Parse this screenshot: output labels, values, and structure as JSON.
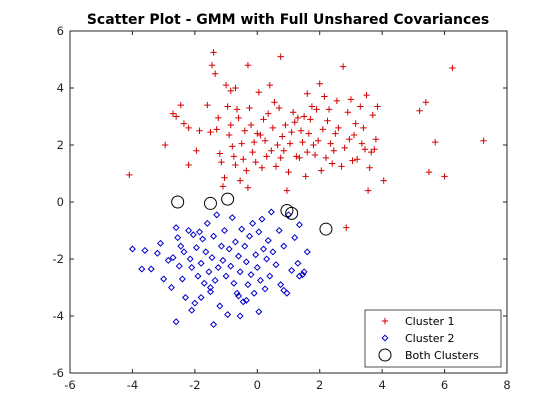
{
  "chart_data": {
    "type": "scatter",
    "title": "Scatter Plot - GMM with Full Unshared Covariances",
    "xlabel": "",
    "ylabel": "",
    "xlim": [
      -6,
      8
    ],
    "ylim": [
      -6,
      6
    ],
    "xticks": [
      -6,
      -4,
      -2,
      0,
      2,
      4,
      6,
      8
    ],
    "yticks": [
      -6,
      -4,
      -2,
      0,
      2,
      4,
      6
    ],
    "grid": false,
    "legend_position": "bottom-right",
    "series": [
      {
        "name": "Cluster 1",
        "marker": "plus",
        "color": "#d40000",
        "points": [
          [
            -4.1,
            0.95
          ],
          [
            -2.95,
            2.0
          ],
          [
            -2.7,
            3.1
          ],
          [
            -2.6,
            3.0
          ],
          [
            -2.45,
            3.4
          ],
          [
            -2.35,
            2.75
          ],
          [
            -2.2,
            1.3
          ],
          [
            -2.2,
            2.6
          ],
          [
            -1.95,
            1.8
          ],
          [
            -1.85,
            2.5
          ],
          [
            -1.6,
            3.4
          ],
          [
            -1.5,
            2.45
          ],
          [
            -1.45,
            4.8
          ],
          [
            -1.4,
            5.25
          ],
          [
            -1.35,
            4.5
          ],
          [
            -1.3,
            2.55
          ],
          [
            -1.25,
            2.95
          ],
          [
            -1.2,
            1.7
          ],
          [
            -1.15,
            1.4
          ],
          [
            -1.1,
            0.55
          ],
          [
            -1.05,
            0.85
          ],
          [
            -1.0,
            4.1
          ],
          [
            -0.95,
            3.35
          ],
          [
            -0.9,
            2.35
          ],
          [
            -0.85,
            3.9
          ],
          [
            -0.85,
            2.7
          ],
          [
            -0.8,
            1.95
          ],
          [
            -0.75,
            1.6
          ],
          [
            -0.7,
            1.3
          ],
          [
            -0.7,
            4.0
          ],
          [
            -0.65,
            3.25
          ],
          [
            -0.6,
            2.95
          ],
          [
            -0.55,
            0.75
          ],
          [
            -0.5,
            2.05
          ],
          [
            -0.45,
            1.5
          ],
          [
            -0.4,
            2.5
          ],
          [
            -0.35,
            1.1
          ],
          [
            -0.3,
            4.8
          ],
          [
            -0.3,
            0.5
          ],
          [
            -0.25,
            3.3
          ],
          [
            -0.2,
            2.7
          ],
          [
            -0.15,
            1.75
          ],
          [
            -0.1,
            2.1
          ],
          [
            -0.05,
            1.4
          ],
          [
            0.0,
            2.4
          ],
          [
            0.05,
            3.85
          ],
          [
            0.1,
            2.35
          ],
          [
            0.15,
            1.2
          ],
          [
            0.2,
            2.9
          ],
          [
            0.25,
            2.15
          ],
          [
            0.3,
            1.6
          ],
          [
            0.35,
            3.1
          ],
          [
            0.4,
            4.1
          ],
          [
            0.45,
            1.8
          ],
          [
            0.5,
            2.6
          ],
          [
            0.55,
            3.5
          ],
          [
            0.6,
            1.25
          ],
          [
            0.65,
            2.0
          ],
          [
            0.7,
            3.3
          ],
          [
            0.75,
            1.55
          ],
          [
            0.75,
            5.1
          ],
          [
            0.8,
            2.3
          ],
          [
            0.85,
            1.8
          ],
          [
            0.9,
            2.7
          ],
          [
            0.95,
            0.4
          ],
          [
            1.0,
            1.05
          ],
          [
            1.05,
            2.05
          ],
          [
            1.1,
            2.45
          ],
          [
            1.15,
            3.15
          ],
          [
            1.2,
            2.8
          ],
          [
            1.25,
            1.6
          ],
          [
            1.3,
            2.95
          ],
          [
            1.35,
            1.55
          ],
          [
            1.4,
            2.5
          ],
          [
            1.45,
            2.1
          ],
          [
            1.5,
            3.0
          ],
          [
            1.55,
            0.9
          ],
          [
            1.6,
            1.75
          ],
          [
            1.6,
            3.8
          ],
          [
            1.65,
            2.4
          ],
          [
            1.7,
            2.9
          ],
          [
            1.75,
            3.35
          ],
          [
            1.8,
            2.0
          ],
          [
            1.85,
            1.65
          ],
          [
            1.9,
            3.25
          ],
          [
            1.95,
            2.15
          ],
          [
            2.0,
            4.15
          ],
          [
            2.05,
            1.1
          ],
          [
            2.1,
            2.55
          ],
          [
            2.15,
            3.7
          ],
          [
            2.2,
            1.55
          ],
          [
            2.25,
            2.85
          ],
          [
            2.3,
            3.25
          ],
          [
            2.35,
            2.05
          ],
          [
            2.4,
            1.35
          ],
          [
            2.45,
            1.8
          ],
          [
            2.5,
            2.4
          ],
          [
            2.55,
            3.55
          ],
          [
            2.6,
            2.6
          ],
          [
            2.7,
            1.25
          ],
          [
            2.75,
            4.75
          ],
          [
            2.8,
            1.9
          ],
          [
            2.85,
            -0.9
          ],
          [
            2.9,
            3.15
          ],
          [
            2.95,
            2.2
          ],
          [
            3.0,
            3.6
          ],
          [
            3.05,
            1.45
          ],
          [
            3.1,
            2.35
          ],
          [
            3.15,
            2.75
          ],
          [
            3.2,
            1.5
          ],
          [
            3.3,
            3.35
          ],
          [
            3.35,
            2.05
          ],
          [
            3.4,
            2.6
          ],
          [
            3.45,
            1.85
          ],
          [
            3.5,
            3.75
          ],
          [
            3.55,
            0.4
          ],
          [
            3.6,
            1.2
          ],
          [
            3.65,
            1.75
          ],
          [
            3.7,
            3.05
          ],
          [
            3.75,
            1.85
          ],
          [
            3.8,
            2.2
          ],
          [
            3.85,
            3.35
          ],
          [
            4.05,
            0.75
          ],
          [
            5.2,
            3.2
          ],
          [
            5.4,
            3.5
          ],
          [
            5.5,
            1.05
          ],
          [
            5.7,
            2.1
          ],
          [
            6.0,
            0.9
          ],
          [
            6.25,
            4.7
          ],
          [
            7.25,
            2.15
          ]
        ]
      },
      {
        "name": "Cluster 2",
        "marker": "diamond",
        "color": "#0000cc",
        "points": [
          [
            -3.6,
            -1.7
          ],
          [
            -3.4,
            -2.35
          ],
          [
            -3.2,
            -1.8
          ],
          [
            -3.1,
            -1.45
          ],
          [
            -3.0,
            -2.7
          ],
          [
            -2.85,
            -2.05
          ],
          [
            -2.75,
            -3.0
          ],
          [
            -2.7,
            -1.95
          ],
          [
            -2.6,
            -0.9
          ],
          [
            -2.55,
            -1.25
          ],
          [
            -2.5,
            -2.25
          ],
          [
            -2.45,
            -1.55
          ],
          [
            -2.4,
            -2.7
          ],
          [
            -2.35,
            -1.75
          ],
          [
            -2.3,
            -3.35
          ],
          [
            -2.2,
            -1.0
          ],
          [
            -2.15,
            -2.0
          ],
          [
            -2.1,
            -2.3
          ],
          [
            -2.05,
            -1.15
          ],
          [
            -2.0,
            -3.55
          ],
          [
            -1.95,
            -1.6
          ],
          [
            -1.9,
            -2.6
          ],
          [
            -1.85,
            -1.05
          ],
          [
            -1.8,
            -2.15
          ],
          [
            -1.75,
            -1.3
          ],
          [
            -1.7,
            -2.85
          ],
          [
            -1.65,
            -1.75
          ],
          [
            -1.6,
            -0.75
          ],
          [
            -1.55,
            -2.45
          ],
          [
            -1.5,
            -3.15
          ],
          [
            -1.45,
            -1.95
          ],
          [
            -1.4,
            -1.2
          ],
          [
            -1.35,
            -2.75
          ],
          [
            -1.3,
            -0.45
          ],
          [
            -1.25,
            -2.3
          ],
          [
            -1.2,
            -3.65
          ],
          [
            -1.15,
            -1.55
          ],
          [
            -1.1,
            -2.05
          ],
          [
            -1.05,
            -1.0
          ],
          [
            -1.0,
            -2.6
          ],
          [
            -0.95,
            -3.95
          ],
          [
            -0.9,
            -1.65
          ],
          [
            -0.85,
            -2.25
          ],
          [
            -0.8,
            -0.55
          ],
          [
            -0.75,
            -2.85
          ],
          [
            -0.7,
            -1.4
          ],
          [
            -0.65,
            -3.2
          ],
          [
            -0.6,
            -1.9
          ],
          [
            -0.55,
            -2.45
          ],
          [
            -0.5,
            -0.95
          ],
          [
            -0.45,
            -3.5
          ],
          [
            -0.4,
            -1.55
          ],
          [
            -0.35,
            -2.1
          ],
          [
            -0.3,
            -2.9
          ],
          [
            -0.25,
            -1.2
          ],
          [
            -0.2,
            -2.55
          ],
          [
            -0.15,
            -0.75
          ],
          [
            -0.1,
            -3.2
          ],
          [
            -0.05,
            -1.85
          ],
          [
            0.0,
            -2.3
          ],
          [
            0.05,
            -1.05
          ],
          [
            0.1,
            -2.75
          ],
          [
            0.15,
            -0.6
          ],
          [
            0.2,
            -1.65
          ],
          [
            0.25,
            -3.05
          ],
          [
            0.3,
            -2.0
          ],
          [
            0.35,
            -1.35
          ],
          [
            0.4,
            -2.6
          ],
          [
            0.45,
            -0.35
          ],
          [
            0.5,
            -1.75
          ],
          [
            0.6,
            -2.2
          ],
          [
            0.7,
            -1.0
          ],
          [
            0.75,
            -2.9
          ],
          [
            0.85,
            -1.55
          ],
          [
            0.95,
            -3.2
          ],
          [
            1.0,
            -0.45
          ],
          [
            1.1,
            -2.4
          ],
          [
            1.2,
            -1.25
          ],
          [
            1.3,
            -2.15
          ],
          [
            1.35,
            -0.8
          ],
          [
            1.45,
            -2.55
          ],
          [
            1.6,
            -1.75
          ],
          [
            -4.0,
            -1.65
          ],
          [
            -2.6,
            -4.2
          ],
          [
            -1.4,
            -4.3
          ],
          [
            -3.7,
            -2.35
          ],
          [
            -2.1,
            -3.8
          ],
          [
            0.05,
            -3.85
          ],
          [
            -0.55,
            -4.0
          ],
          [
            1.35,
            -2.6
          ],
          [
            1.5,
            -2.45
          ],
          [
            -0.6,
            -3.3
          ],
          [
            -0.35,
            -3.45
          ],
          [
            0.85,
            -3.1
          ],
          [
            -1.5,
            -3.0
          ],
          [
            -1.8,
            -3.35
          ]
        ]
      },
      {
        "name": "Both Clusters",
        "marker": "circle",
        "color": "#000000",
        "points": [
          [
            -2.55,
            0.0
          ],
          [
            -1.5,
            -0.05
          ],
          [
            -0.95,
            0.1
          ],
          [
            0.95,
            -0.3
          ],
          [
            1.1,
            -0.4
          ],
          [
            2.2,
            -0.95
          ]
        ]
      }
    ]
  }
}
